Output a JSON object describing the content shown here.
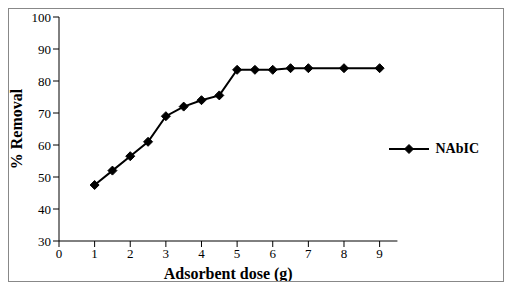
{
  "chart_data": {
    "type": "line",
    "x_label": "Adsorbent dose (g)",
    "y_label": "% Removal",
    "xlim": [
      0,
      9.5
    ],
    "xticks": [
      0,
      1,
      2,
      3,
      4,
      5,
      6,
      7,
      8,
      9
    ],
    "ylim": [
      30,
      100
    ],
    "yticks": [
      30,
      40,
      50,
      60,
      70,
      80,
      90,
      100
    ],
    "grid": false,
    "legend": "right",
    "series": [
      {
        "name": "NAbIC",
        "color": "#000000",
        "marker": "diamond",
        "x": [
          1,
          1.5,
          2,
          2.5,
          3,
          3.5,
          4,
          4.5,
          5,
          5.5,
          6,
          6.5,
          7,
          8,
          9
        ],
        "values": [
          47.5,
          52,
          56.5,
          61,
          69,
          72,
          74,
          75.5,
          83.5,
          83.5,
          83.5,
          84,
          84,
          84,
          84
        ]
      }
    ]
  }
}
